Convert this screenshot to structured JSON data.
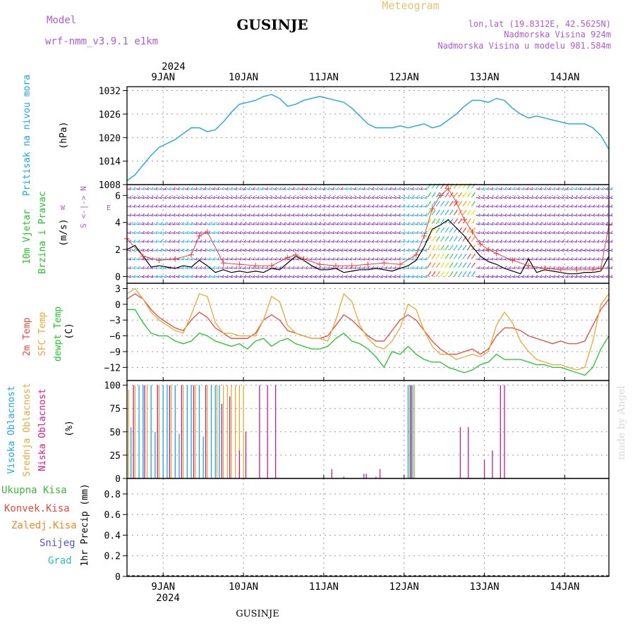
{
  "header": {
    "model_label": "Model",
    "model_name": "wrf-nmm_v3.9.1 e1km",
    "title": "GUSINJE",
    "meteogram_label": "Meteogram",
    "lonlat": "lon,lat (19.8312E, 42.5625N)",
    "elevation": "Nadmorska Visina 924m",
    "model_elevation": "Nadmorska Visina u modelu 981.584m",
    "year": "2024",
    "footer_station": "GUSINJE",
    "watermark": "made by Angel"
  },
  "colors": {
    "pressure": "#1fa6e0",
    "temp2m": "#e8493a",
    "sfc_temp": "#e8a838",
    "dewpoint": "#22c32a",
    "cloud_high": "#1fa6e0",
    "cloud_mid": "#e8a838",
    "cloud_low": "#c01f8c",
    "wind_speed": "#000000",
    "gust": "#e8493a",
    "barb": "#8b2fc9",
    "label_purple": "#b05ad8",
    "label_magenta": "#e0198b",
    "label_green": "#3fb43a",
    "label_red": "#e8493a",
    "label_orange": "#f08a28",
    "label_blue": "#5050e0",
    "label_teal": "#28c0b0"
  },
  "chart_data": [
    {
      "type": "line",
      "name": "pressure",
      "ylabel_side": "Pritisak na nivou mora",
      "ylabel_unit": "(hPa)",
      "ylim": [
        1008,
        1033
      ],
      "yticks": [
        1008,
        1014,
        1020,
        1026,
        1032
      ],
      "x": [
        0,
        1,
        2,
        3,
        4,
        5,
        6,
        7,
        8,
        9,
        10,
        11,
        12,
        13,
        14,
        15,
        16,
        17,
        18,
        19,
        20,
        21,
        22,
        23,
        24,
        25,
        26,
        27,
        28,
        29,
        30,
        31,
        32,
        33,
        34,
        35,
        36,
        37,
        38,
        39,
        40,
        41,
        42,
        43,
        44,
        45,
        46,
        47,
        48,
        49,
        50,
        51,
        52,
        53,
        54,
        55,
        56,
        57,
        58,
        59,
        60
      ],
      "values": [
        1009,
        1010.5,
        1013,
        1015.5,
        1017.5,
        1018.5,
        1019.5,
        1021,
        1022.5,
        1022.5,
        1021.5,
        1022,
        1024,
        1026.5,
        1028.5,
        1029,
        1029.5,
        1030.5,
        1031,
        1030,
        1028,
        1028.5,
        1029.5,
        1030,
        1030.5,
        1030,
        1029.5,
        1029,
        1027.5,
        1025.5,
        1023.5,
        1022.5,
        1022.5,
        1022.5,
        1023,
        1022.5,
        1023,
        1023.5,
        1022.5,
        1023,
        1024.5,
        1026,
        1028,
        1029.5,
        1029.5,
        1029,
        1030,
        1029.5,
        1027.5,
        1026,
        1025,
        1025.5,
        1025,
        1024.5,
        1024,
        1023.5,
        1023.5,
        1023.5,
        1022.5,
        1020.5,
        1017
      ]
    },
    {
      "type": "line",
      "name": "wind",
      "ylabel_side": "10m Vjetar Brzina i Pravac",
      "ylabel_unit": "(m/s)",
      "compass_labels": [
        "N",
        "E",
        "S",
        "W"
      ],
      "compass_arrows": "<-|->",
      "ylim": [
        -0.5,
        6.8
      ],
      "yticks": [
        0,
        2,
        4,
        6
      ],
      "speed_x": [
        0,
        1,
        2,
        3,
        4,
        5,
        6,
        7,
        8,
        9,
        10,
        11,
        12,
        13,
        14,
        15,
        16,
        17,
        18,
        19,
        20,
        21,
        22,
        23,
        24,
        25,
        26,
        27,
        28,
        29,
        30,
        31,
        32,
        33,
        34,
        35,
        36,
        37,
        38,
        39,
        40,
        41,
        42,
        43,
        44,
        45,
        46,
        47,
        48,
        49,
        50,
        51,
        52,
        53,
        54,
        55,
        56,
        57,
        58,
        59,
        60
      ],
      "speed": [
        2,
        2.3,
        1.5,
        0.7,
        0.8,
        0.7,
        0.6,
        0.8,
        0.7,
        1.2,
        0.8,
        0.3,
        0.5,
        0.3,
        0.4,
        0.3,
        0.4,
        0.3,
        0.6,
        0.5,
        1,
        1.5,
        1.2,
        0.8,
        0.5,
        0.5,
        0.6,
        0.3,
        0.4,
        0.5,
        0.5,
        0.6,
        0.5,
        0.4,
        0.6,
        0.8,
        1.2,
        2.2,
        3.5,
        3.8,
        4.2,
        3.6,
        3,
        2.2,
        1.5,
        1.1,
        0.9,
        0.6,
        0.4,
        0.2,
        1.3,
        0.3,
        0.5,
        0.4,
        0.3,
        0.2,
        0.2,
        0.3,
        0.3,
        0.4,
        1.5
      ],
      "gust_x": [
        0,
        2,
        4,
        6,
        8,
        9,
        10,
        12,
        14,
        16,
        18,
        20,
        21,
        22,
        24,
        26,
        28,
        30,
        32,
        34,
        36,
        37,
        38,
        39,
        40,
        41,
        42,
        43,
        44,
        45,
        46,
        48,
        50,
        52,
        54,
        56,
        58,
        59,
        60
      ],
      "gust": [
        2.8,
        1.5,
        1.2,
        1.3,
        1.6,
        3,
        3.3,
        1,
        0.9,
        0.8,
        0.8,
        1.4,
        1.6,
        1.3,
        0.9,
        0.8,
        0.8,
        0.9,
        1,
        0.9,
        1.6,
        3,
        5,
        6,
        6.5,
        5.5,
        4.2,
        3.3,
        2.4,
        2,
        1.7,
        1.2,
        0.8,
        0.6,
        0.5,
        0.5,
        0.5,
        0.6,
        3.8
      ]
    },
    {
      "type": "line",
      "name": "temperature",
      "ylabel_side": [
        "2m Temp",
        "SFC Temp",
        "dewpt Temp"
      ],
      "ylabel_unit": "(C)",
      "ylim": [
        -14.5,
        4
      ],
      "yticks": [
        -12,
        -9,
        -6,
        -3,
        0,
        3
      ],
      "series": [
        {
          "name": "2m Temp",
          "x": [
            0,
            1,
            2,
            3,
            4,
            5,
            6,
            7,
            8,
            9,
            10,
            11,
            12,
            13,
            14,
            15,
            16,
            17,
            18,
            19,
            20,
            21,
            22,
            23,
            24,
            25,
            26,
            27,
            28,
            29,
            30,
            31,
            32,
            33,
            34,
            35,
            36,
            37,
            38,
            39,
            40,
            41,
            42,
            43,
            44,
            45,
            46,
            47,
            48,
            49,
            50,
            51,
            52,
            53,
            54,
            55,
            56,
            57,
            58,
            59,
            60
          ],
          "values": [
            1,
            2,
            1,
            -1,
            -2.5,
            -3.5,
            -4.5,
            -5,
            -3,
            -1.5,
            -2.5,
            -4.5,
            -5.5,
            -6.5,
            -6.5,
            -6.5,
            -5.5,
            -3,
            -2,
            -3,
            -5,
            -5.5,
            -6,
            -6.5,
            -6.5,
            -6,
            -4,
            -2,
            -3,
            -4.5,
            -6,
            -7,
            -7,
            -5,
            -3,
            -2,
            -3,
            -5,
            -7,
            -8.5,
            -9.5,
            -9.5,
            -9,
            -8.5,
            -9.5,
            -8.5,
            -6,
            -4.5,
            -4.5,
            -5,
            -6,
            -6.5,
            -7,
            -7.5,
            -7,
            -7.5,
            -7.5,
            -7,
            -4,
            -1,
            1
          ]
        },
        {
          "name": "SFC Temp",
          "x": [
            0,
            1,
            2,
            3,
            4,
            5,
            6,
            7,
            8,
            9,
            10,
            11,
            12,
            13,
            14,
            15,
            16,
            17,
            18,
            19,
            20,
            21,
            22,
            23,
            24,
            25,
            26,
            27,
            28,
            29,
            30,
            31,
            32,
            33,
            34,
            35,
            36,
            37,
            38,
            39,
            40,
            41,
            42,
            43,
            44,
            45,
            46,
            47,
            48,
            49,
            50,
            51,
            52,
            53,
            54,
            55,
            56,
            57,
            58,
            59,
            60
          ],
          "values": [
            2,
            3,
            1,
            -1.5,
            -3,
            -4,
            -5,
            -5.5,
            -2,
            2,
            1.5,
            -3.5,
            -5.5,
            -5.5,
            -6,
            -6,
            -6,
            -3,
            1.5,
            0.5,
            -4,
            -5.5,
            -6,
            -6.5,
            -6.5,
            -7,
            -3,
            2,
            0.5,
            -4,
            -6.5,
            -8,
            -8.5,
            -7,
            -4.5,
            0,
            -1,
            -5,
            -8,
            -9.5,
            -9.5,
            -10.5,
            -10,
            -9.5,
            -10,
            -9,
            -4,
            -1.5,
            -3.5,
            -7,
            -9,
            -10.5,
            -11,
            -11.5,
            -11.5,
            -12,
            -12.5,
            -12,
            -7,
            0,
            2
          ]
        },
        {
          "name": "dewpt Temp",
          "x": [
            0,
            1,
            2,
            3,
            4,
            5,
            6,
            7,
            8,
            9,
            10,
            11,
            12,
            13,
            14,
            15,
            16,
            17,
            18,
            19,
            20,
            21,
            22,
            23,
            24,
            25,
            26,
            27,
            28,
            29,
            30,
            31,
            32,
            33,
            34,
            35,
            36,
            37,
            38,
            39,
            40,
            41,
            42,
            43,
            44,
            45,
            46,
            47,
            48,
            49,
            50,
            51,
            52,
            53,
            54,
            55,
            56,
            57,
            58,
            59,
            60
          ],
          "values": [
            -1,
            -1,
            -3.5,
            -5.5,
            -6,
            -6,
            -7,
            -7.5,
            -7,
            -5.5,
            -6,
            -7,
            -7.5,
            -8,
            -7.5,
            -8.5,
            -7,
            -6.5,
            -8,
            -7,
            -6.5,
            -7.5,
            -8,
            -8.5,
            -8.5,
            -8,
            -6.5,
            -5.5,
            -7,
            -7.5,
            -8.5,
            -10,
            -12,
            -9,
            -9.5,
            -8,
            -9.5,
            -10.5,
            -11,
            -11,
            -12,
            -12.5,
            -13,
            -12.5,
            -11.5,
            -11,
            -9.5,
            -10.5,
            -10.5,
            -10.5,
            -11,
            -11.5,
            -11.5,
            -12,
            -12,
            -12.5,
            -13,
            -13.5,
            -12,
            -8.5,
            -6
          ]
        }
      ]
    },
    {
      "type": "bar",
      "name": "cloud",
      "ylabel_side": [
        "Visoka Oblacnost",
        "Srednja Oblacnost",
        "Niska Oblacnost"
      ],
      "ylabel_unit": "(%)",
      "ylim": [
        0,
        105
      ],
      "yticks": [
        0,
        25,
        50,
        75,
        100
      ],
      "series": [
        {
          "name": "Visoka Oblacnost",
          "x": [
            0.5,
            1.5,
            2,
            3,
            3.5,
            4.5,
            5,
            6,
            6.5,
            7.5,
            8,
            9,
            9.5,
            10.5,
            11,
            11.5,
            35,
            35.3,
            35.6
          ],
          "values": [
            55,
            100,
            100,
            100,
            50,
            100,
            100,
            100,
            48,
            100,
            100,
            100,
            45,
            100,
            100,
            100,
            100,
            100,
            100
          ]
        },
        {
          "name": "Srednja Oblacnost",
          "x": [
            0.2,
            1,
            2.5,
            4,
            5.5,
            7,
            8.5,
            10,
            11.2,
            12,
            12.5,
            13,
            13.5,
            14,
            14.5,
            35.2,
            35.8
          ],
          "values": [
            95,
            100,
            100,
            100,
            100,
            100,
            100,
            100,
            100,
            100,
            100,
            100,
            100,
            100,
            100,
            100,
            100
          ]
        },
        {
          "name": "Niska Oblacnost",
          "x": [
            0.8,
            2.2,
            3.8,
            5.3,
            6.8,
            8.3,
            9.8,
            11.8,
            12.8,
            14,
            14.8,
            16.5,
            17.5,
            18.5,
            25.5,
            27,
            29.5,
            29.8,
            31,
            31.5,
            35.4,
            41.5,
            42.5,
            44.5,
            45.5,
            46.5,
            47
          ],
          "values": [
            100,
            100,
            100,
            100,
            100,
            100,
            100,
            80,
            88,
            30,
            50,
            100,
            100,
            100,
            10,
            2,
            5,
            5,
            2,
            10,
            100,
            55,
            55,
            20,
            30,
            100,
            100
          ]
        }
      ]
    },
    {
      "type": "bar",
      "name": "precip",
      "ylabel_side": "1hr Precip (mm)",
      "legend_left": [
        "Ukupna Kisa",
        "Konvek.Kisa",
        "Zaledj.Kisa",
        "Snijeg",
        "Grad"
      ],
      "ylim": [
        0,
        0.95
      ],
      "yticks": [
        0,
        0.2,
        0.4,
        0.6,
        0.8
      ],
      "ytick_labels": [
        "0",
        "0.2",
        "0.4",
        "0.6",
        "0.8"
      ],
      "values": []
    }
  ],
  "x_axis": {
    "range": [
      0,
      60
    ],
    "days": [
      {
        "label": "9JAN",
        "x": 4.5
      },
      {
        "label": "10JAN",
        "x": 14.5
      },
      {
        "label": "11JAN",
        "x": 24.5
      },
      {
        "label": "12JAN",
        "x": 34.5
      },
      {
        "label": "13JAN",
        "x": 44.5
      },
      {
        "label": "14JAN",
        "x": 54.5
      }
    ]
  }
}
